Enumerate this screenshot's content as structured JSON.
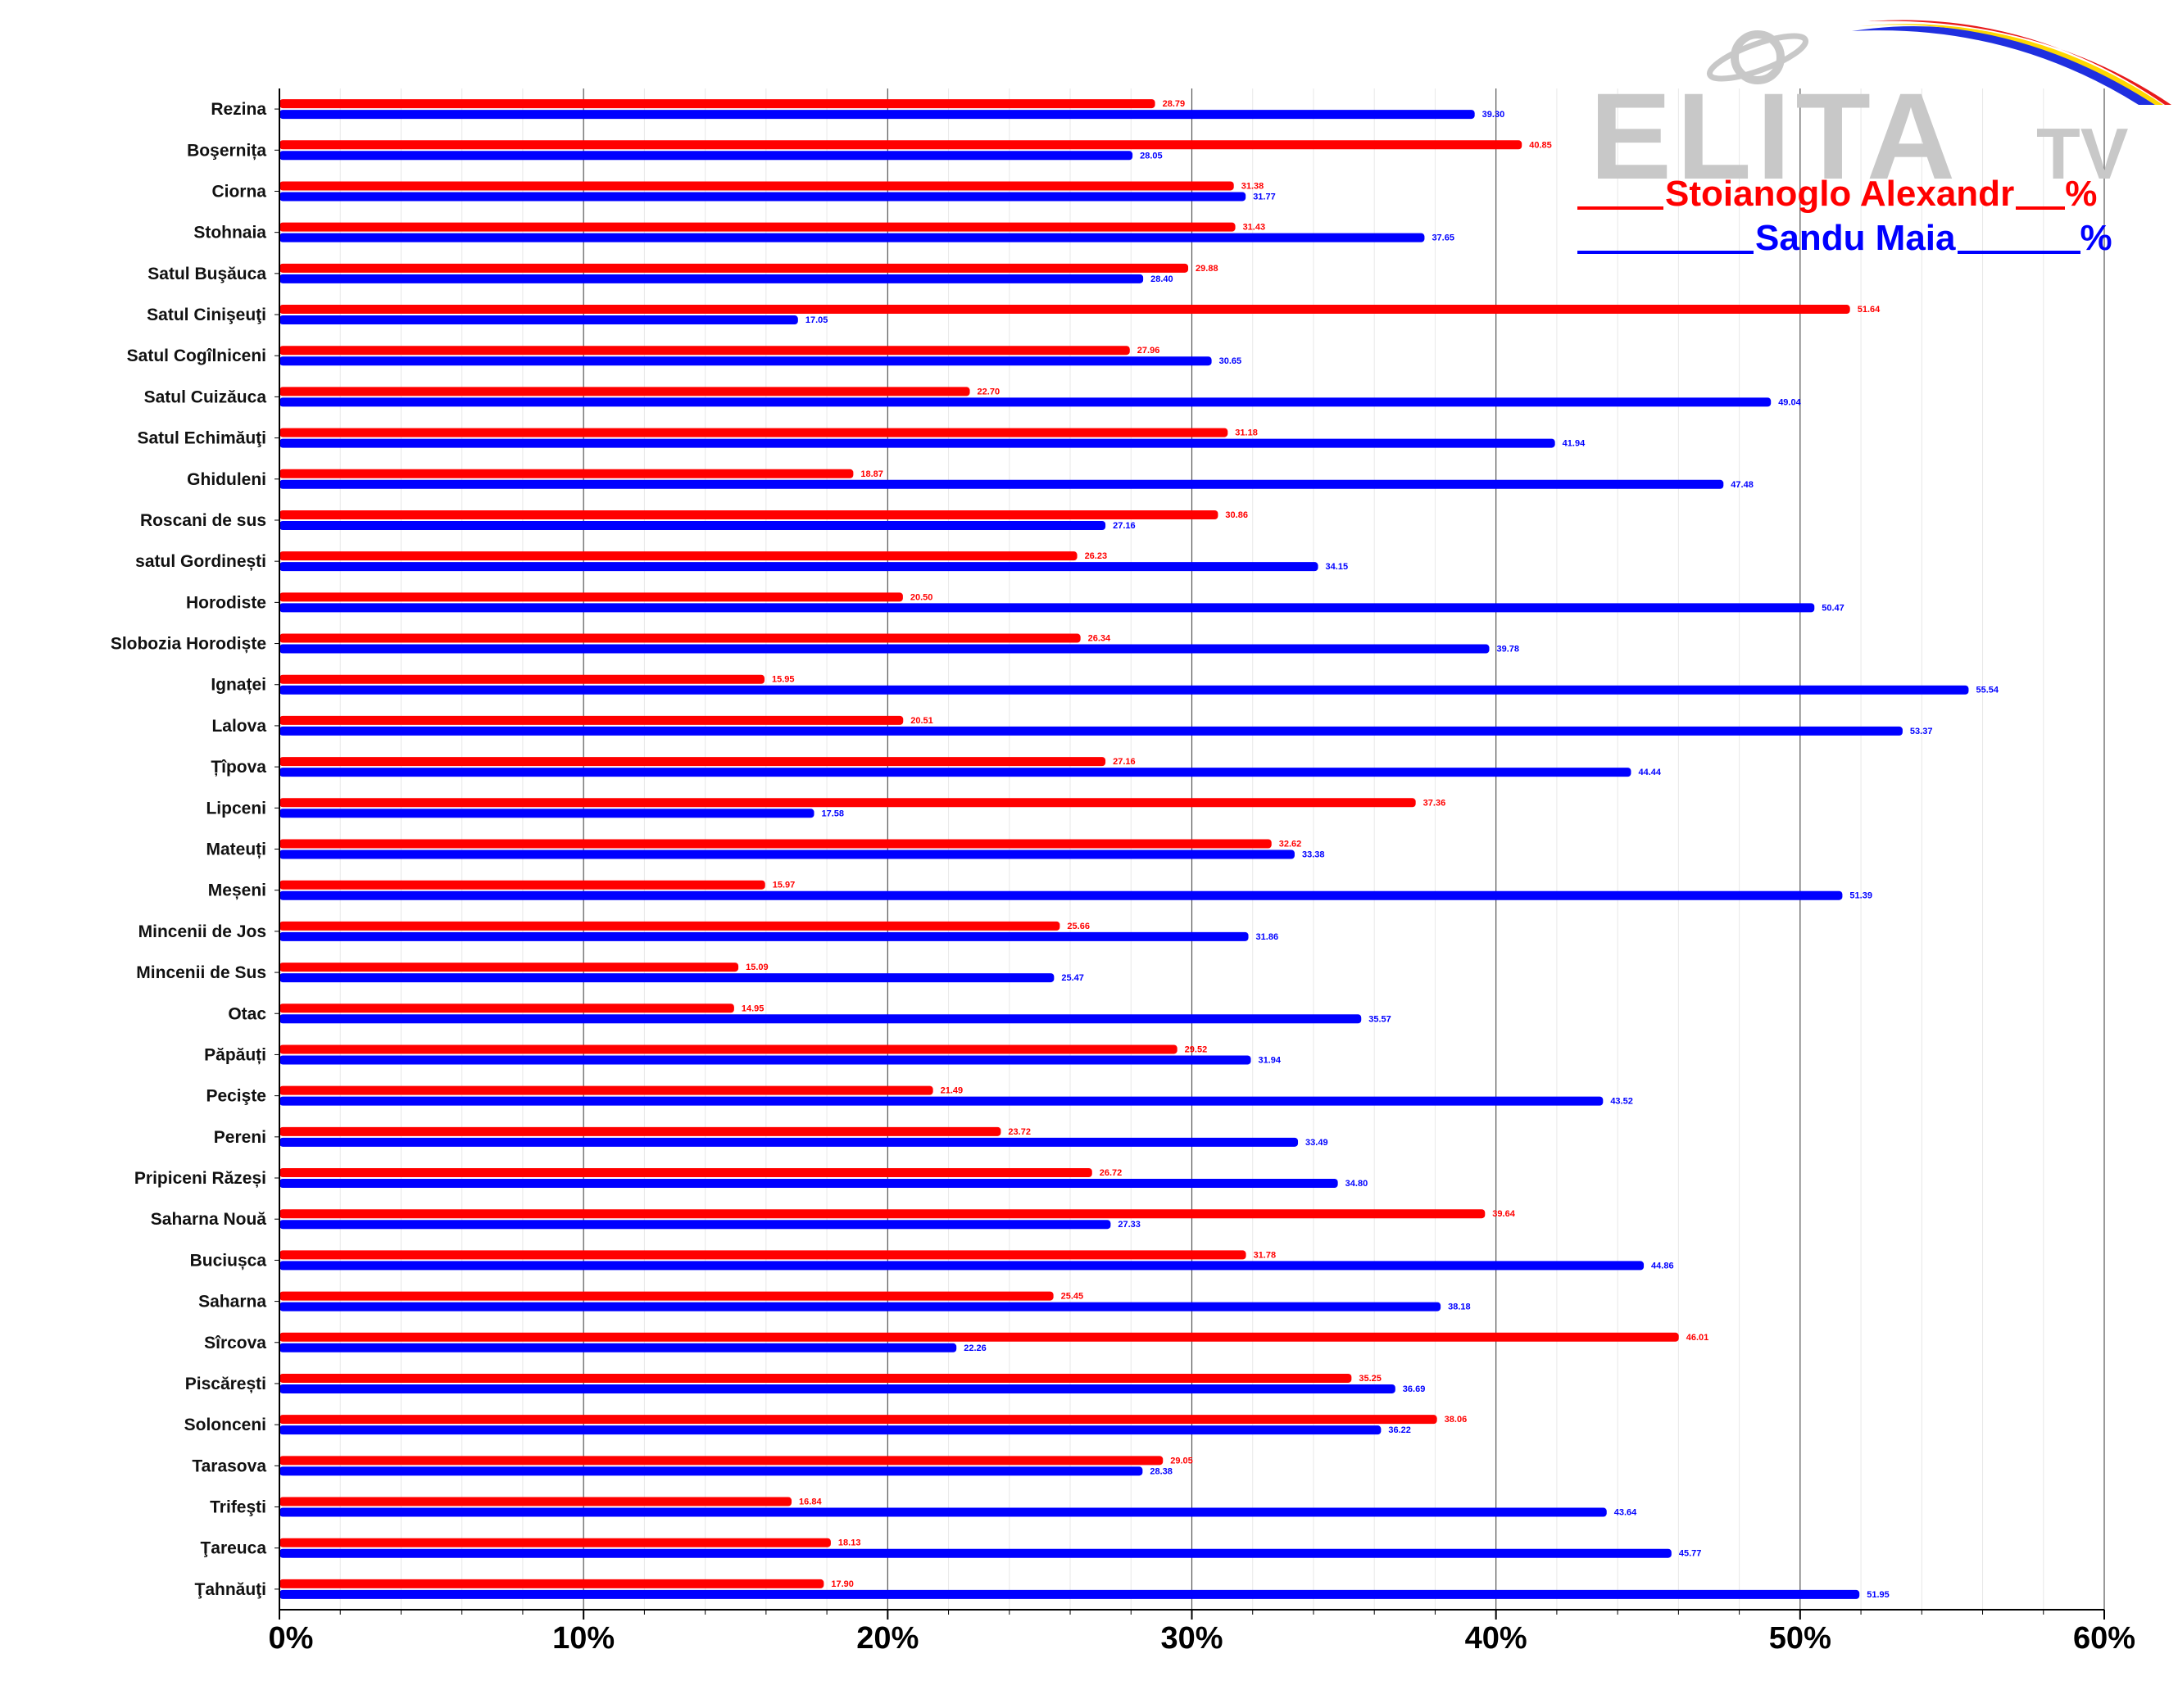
{
  "chart_data": {
    "type": "bar",
    "orientation": "horizontal",
    "categories": [
      "Rezina",
      "Boşernița",
      "Ciorna",
      "Stohnaia",
      "Satul Buşăuca",
      "Satul Cinişeuţi",
      "Satul Cogîlniceni",
      "Satul Cuizăuca",
      "Satul Echimăuţi",
      "Ghiduleni",
      "Roscani de sus",
      "satul Gordinești",
      "Horodiste",
      "Slobozia Horodiște",
      "Ignaței",
      "Lalova",
      "Țîpova",
      "Lipceni",
      "Mateuți",
      "Meșeni",
      "Mincenii de Jos",
      "Mincenii de Sus",
      "Otac",
      "Păpăuți",
      "Pecişte",
      "Pereni",
      "Pripiceni Răzeși",
      "Saharna Nouă",
      "Buciușca",
      "Saharna",
      "Sîrcova",
      "Piscărești",
      "Solonceni",
      "Tarasova",
      "Trifeşti",
      "Ţareuca",
      "Ţahnăuţi"
    ],
    "series": [
      {
        "name": "Stoianoglo Alexandr",
        "color": "#ff0000",
        "values": [
          28.79,
          40.85,
          31.38,
          31.43,
          29.88,
          51.64,
          27.96,
          22.7,
          31.18,
          18.87,
          30.86,
          26.23,
          20.5,
          26.34,
          15.95,
          20.51,
          27.16,
          37.36,
          32.62,
          15.97,
          25.66,
          15.09,
          14.95,
          29.52,
          21.49,
          23.72,
          26.72,
          39.64,
          31.78,
          25.45,
          46.01,
          35.25,
          38.06,
          29.05,
          16.84,
          18.13,
          17.9
        ],
        "labels": [
          "28.79",
          "40.85",
          "31.38",
          "31.43",
          "29.88",
          "51.64",
          "27.96",
          "22.70",
          "31.18",
          "18.87",
          "30.86",
          "26.23",
          "20.50",
          "26.34",
          "15.95",
          "20.51",
          "27.16",
          "37.36",
          "32.62",
          "15.97",
          "25.66",
          "15.09",
          "14.95",
          "29.52",
          "21.49",
          "23.72",
          "26.72",
          "39.64",
          "31.78",
          "25.45",
          "46.01",
          "35.25",
          "38.06",
          "29.05",
          "16.84",
          "18.13",
          "17.90"
        ]
      },
      {
        "name": "Sandu Maia",
        "color": "#0000ff",
        "values": [
          39.3,
          28.05,
          31.77,
          37.65,
          28.4,
          17.05,
          30.65,
          49.04,
          41.94,
          47.48,
          27.16,
          34.15,
          50.47,
          39.78,
          55.54,
          53.37,
          44.44,
          17.58,
          33.38,
          51.39,
          31.86,
          25.47,
          35.57,
          31.94,
          43.52,
          33.49,
          34.8,
          27.33,
          44.86,
          38.18,
          22.26,
          36.69,
          36.22,
          28.38,
          43.64,
          45.77,
          51.95
        ],
        "labels": [
          "39.30",
          "28.05",
          "31.77",
          "37.65",
          "28.40",
          "17.05",
          "30.65",
          "49.04",
          "41.94",
          "47.48",
          "27.16",
          "34.15",
          "50.47",
          "39.78",
          "55.54",
          "53.37",
          "44.44",
          "17.58",
          "33.38",
          "51.39",
          "31.86",
          "25.47",
          "35.57",
          "31.94",
          "43.52",
          "33.49",
          "34.80",
          "27.33",
          "44.86",
          "38.18",
          "22.26",
          "36.69",
          "36.22",
          "28.38",
          "43.64",
          "45.77",
          "51.95"
        ]
      }
    ],
    "xlim": [
      0,
      60
    ],
    "x_ticks": [
      "0%",
      "10%",
      "20%",
      "30%",
      "40%",
      "50%",
      "60%"
    ],
    "grid": true,
    "legend_placement": "top-right"
  },
  "logo": {
    "text": "ELITA",
    "suffix": "TV"
  },
  "legend": [
    {
      "name": "Stoianoglo Alexandr",
      "suffix": "%",
      "color": "#ff0000"
    },
    {
      "name": "Sandu Maia",
      "suffix": "%",
      "color": "#0000ff"
    }
  ]
}
